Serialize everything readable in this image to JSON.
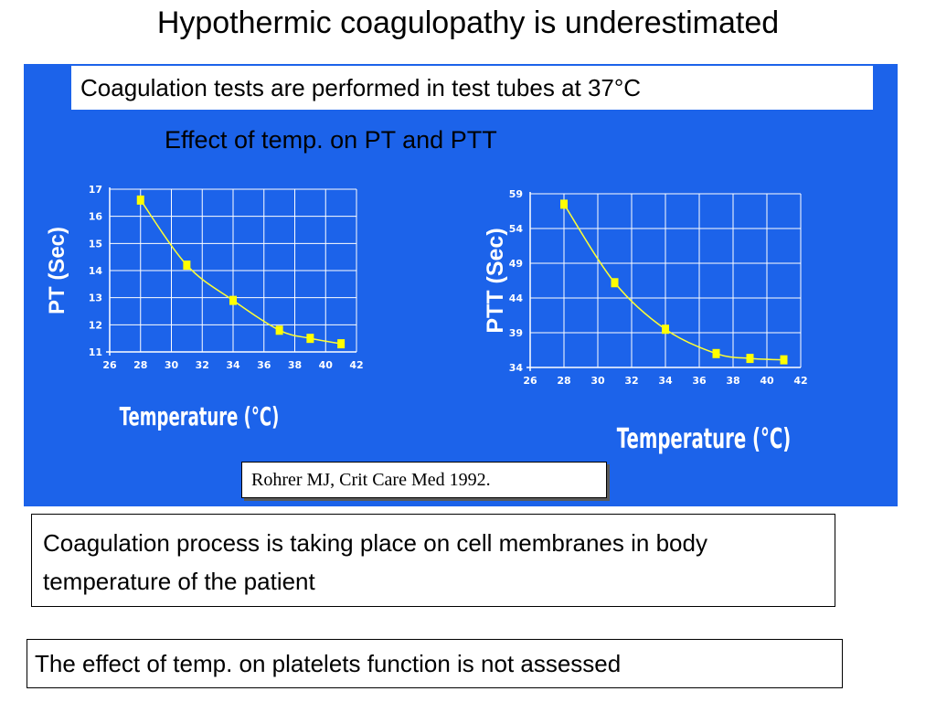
{
  "slide": {
    "title": "Hypothermic coagulopathy is  underestimated",
    "subtitle": "Coagulation tests are performed in test tubes at 37°C",
    "effect_title": "Effect of temp. on PT and PTT",
    "citation": "Rohrer MJ, Crit Care Med 1992.",
    "note1": "Coagulation process is taking place on cell membranes in body temperature of the patient",
    "note2": "The effect of temp. on platelets function is not assessed"
  },
  "colors": {
    "panel": "#1c63ea",
    "line": "#ffff33",
    "marker": "#ffff00",
    "grid": "#ffffff",
    "text_on_panel": "#ffffff"
  },
  "chart_data": [
    {
      "type": "line",
      "title": "",
      "xlabel": "Temperature (°C)",
      "ylabel": "PT (Sec)",
      "xlim": [
        26,
        42
      ],
      "ylim": [
        11,
        17
      ],
      "x_ticks": [
        26,
        28,
        30,
        32,
        34,
        36,
        38,
        40,
        42
      ],
      "y_ticks": [
        11,
        12,
        13,
        14,
        15,
        16,
        17
      ],
      "grid": true,
      "series": [
        {
          "x": [
            28,
            31,
            34,
            37,
            39,
            41
          ],
          "values": [
            16.6,
            14.2,
            12.9,
            11.8,
            11.5,
            11.3
          ]
        }
      ]
    },
    {
      "type": "line",
      "title": "",
      "xlabel": "Temperature (°C)",
      "ylabel": "PTT (Sec)",
      "xlim": [
        26,
        42
      ],
      "ylim": [
        34,
        59
      ],
      "x_ticks": [
        26,
        28,
        30,
        32,
        34,
        36,
        38,
        40,
        42
      ],
      "y_ticks": [
        34,
        39,
        44,
        49,
        54,
        59
      ],
      "grid": true,
      "series": [
        {
          "x": [
            28,
            31,
            34,
            37,
            39,
            41
          ],
          "values": [
            57.5,
            46.2,
            39.5,
            36,
            35.3,
            35.1
          ]
        }
      ]
    }
  ]
}
